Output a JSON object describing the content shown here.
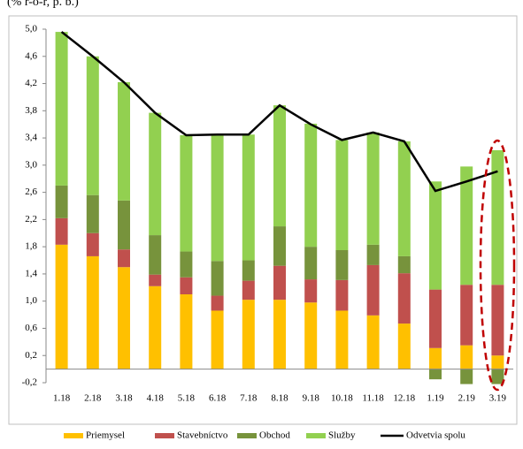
{
  "chart_data": {
    "type": "stacked_bar_line",
    "subtitle": "(% r-o-r, p. b.)",
    "categories": [
      "1.18",
      "2.18",
      "3.18",
      "4.18",
      "5.18",
      "6.18",
      "7.18",
      "8.18",
      "9.18",
      "10.18",
      "11.18",
      "12.18",
      "1.19",
      "2.19",
      "3.19"
    ],
    "series": [
      {
        "name": "Priemysel",
        "color": "#ffc000",
        "kind": "bar",
        "values": [
          1.83,
          1.66,
          1.5,
          1.22,
          1.1,
          0.86,
          1.02,
          1.02,
          0.98,
          0.86,
          0.79,
          0.67,
          0.31,
          0.35,
          0.2
        ]
      },
      {
        "name": "Stavebníctvo",
        "color": "#c0504d",
        "kind": "bar",
        "values": [
          0.39,
          0.34,
          0.26,
          0.17,
          0.25,
          0.22,
          0.28,
          0.5,
          0.34,
          0.45,
          0.74,
          0.74,
          0.86,
          0.89,
          1.04
        ]
      },
      {
        "name": "Obchod",
        "color": "#77933c",
        "kind": "bar",
        "values": [
          0.48,
          0.56,
          0.72,
          0.58,
          0.38,
          0.51,
          0.3,
          0.58,
          0.48,
          0.44,
          0.3,
          0.25,
          -0.15,
          -0.22,
          -0.22
        ]
      },
      {
        "name": "Služby",
        "color": "#92d050",
        "kind": "bar",
        "values": [
          2.26,
          2.04,
          1.74,
          1.8,
          1.71,
          1.86,
          1.85,
          1.78,
          1.81,
          1.62,
          1.65,
          1.69,
          1.59,
          1.74,
          1.98
        ]
      },
      {
        "name": "Odvetvia spolu",
        "color": "#000000",
        "kind": "line",
        "values": [
          4.96,
          4.6,
          4.22,
          3.77,
          3.44,
          3.45,
          3.45,
          3.88,
          3.6,
          3.37,
          3.48,
          3.35,
          2.62,
          2.76,
          2.91
        ]
      }
    ],
    "ylim": [
      -0.2,
      5.0
    ],
    "yticks": [
      {
        "value": -0.2,
        "label": "-0,2"
      },
      {
        "value": 0.2,
        "label": "0,2"
      },
      {
        "value": 0.6,
        "label": "0,6"
      },
      {
        "value": 1.0,
        "label": "1,0"
      },
      {
        "value": 1.4,
        "label": "1,4"
      },
      {
        "value": 1.8,
        "label": "1,8"
      },
      {
        "value": 2.2,
        "label": "2,2"
      },
      {
        "value": 2.6,
        "label": "2,6"
      },
      {
        "value": 3.0,
        "label": "3,0"
      },
      {
        "value": 3.4,
        "label": "3,4"
      },
      {
        "value": 3.8,
        "label": "3,8"
      },
      {
        "value": 4.2,
        "label": "4,2"
      },
      {
        "value": 4.6,
        "label": "4,6"
      },
      {
        "value": 5.0,
        "label": "5,0"
      }
    ],
    "grid": false,
    "legend": "bottom"
  }
}
